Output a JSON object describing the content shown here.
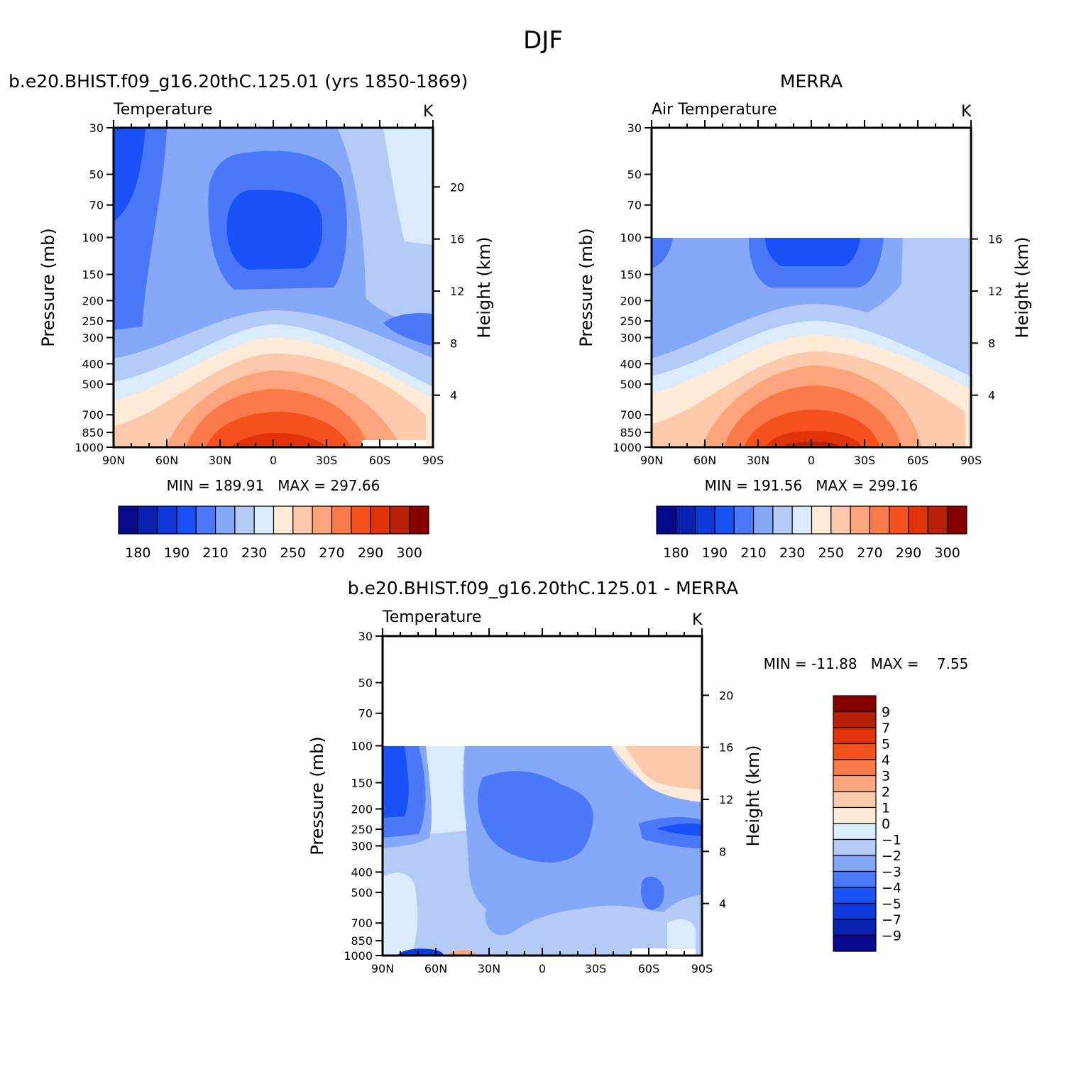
{
  "title": "DJF",
  "colors": {
    "abs_scale": [
      "#08088c",
      "#0a20b0",
      "#0c39d8",
      "#1a52f8",
      "#4a78f8",
      "#86a8f8",
      "#b4cbf8",
      "#daebfc",
      "#fdebd8",
      "#fcc9ad",
      "#fca47c",
      "#fb7a4b",
      "#f5511f",
      "#e0330a",
      "#b92005",
      "#870000"
    ],
    "diff_scale": [
      "#08088c",
      "#0a20b0",
      "#0c39d8",
      "#1a52f8",
      "#4a78f8",
      "#86a8f8",
      "#b4cbf8",
      "#daebfc",
      "#fdebd8",
      "#fcc9ad",
      "#fca47c",
      "#fb7a4b",
      "#f5511f",
      "#e0330a",
      "#b92005",
      "#870000"
    ]
  },
  "panels": {
    "model": {
      "subtitle": "b.e20.BHIST.f09_g16.20thC.125.01 (yrs 1850-1869)",
      "left_label": "Temperature",
      "right_label": "K",
      "stats": "MIN = 189.91   MAX = 297.66",
      "y_title": "Pressure (mb)",
      "y2_title": "Height (km)"
    },
    "obs": {
      "subtitle": "MERRA",
      "left_label": "Air Temperature",
      "right_label": "K",
      "stats": "MIN = 191.56   MAX = 299.16",
      "y_title": "Pressure (mb)",
      "y2_title": "Height (km)"
    },
    "diff": {
      "subtitle": "b.e20.BHIST.f09_g16.20thC.125.01 - MERRA",
      "left_label": "Temperature",
      "right_label": "K",
      "stats": "MIN = -11.88   MAX =    7.55",
      "y_title": "Pressure (mb)",
      "y2_title": "Height (km)"
    }
  },
  "chart_data": [
    {
      "type": "heatmap",
      "panel": "model",
      "title": "b.e20.BHIST.f09_g16.20thC.125.01 (yrs 1850-1869)",
      "x_ticks": [
        "90N",
        "60N",
        "30N",
        "0",
        "30S",
        "60S",
        "90S"
      ],
      "xlim": [
        90,
        -90
      ],
      "y_ticks": [
        30,
        50,
        70,
        100,
        150,
        200,
        250,
        300,
        400,
        500,
        700,
        850,
        1000
      ],
      "ylim": [
        30,
        1000
      ],
      "y_scale": "log",
      "y2_ticks": [
        4,
        8,
        12,
        16,
        20
      ],
      "contour_levels": [
        180,
        190,
        210,
        230,
        250,
        270,
        290,
        300
      ],
      "min": 189.91,
      "max": 297.66,
      "units": "K"
    },
    {
      "type": "heatmap",
      "panel": "obs",
      "title": "MERRA",
      "x_ticks": [
        "90N",
        "60N",
        "30N",
        "0",
        "30S",
        "60S",
        "90S"
      ],
      "xlim": [
        90,
        -90
      ],
      "y_ticks": [
        30,
        50,
        70,
        100,
        150,
        200,
        250,
        300,
        400,
        500,
        700,
        850,
        1000
      ],
      "ylim": [
        30,
        1000
      ],
      "y_scale": "log",
      "y2_ticks": [
        4,
        8,
        12,
        16
      ],
      "contour_levels": [
        180,
        190,
        210,
        230,
        250,
        270,
        290,
        300
      ],
      "min": 191.56,
      "max": 299.16,
      "units": "K"
    },
    {
      "type": "heatmap",
      "panel": "diff",
      "title": "b.e20.BHIST.f09_g16.20thC.125.01 - MERRA",
      "x_ticks": [
        "90N",
        "60N",
        "30N",
        "0",
        "30S",
        "60S",
        "90S"
      ],
      "xlim": [
        90,
        -90
      ],
      "y_ticks": [
        30,
        50,
        70,
        100,
        150,
        200,
        250,
        300,
        400,
        500,
        700,
        850,
        1000
      ],
      "ylim": [
        30,
        1000
      ],
      "y_scale": "log",
      "y2_ticks": [
        4,
        8,
        12,
        16,
        20
      ],
      "contour_levels": [
        -9,
        -7,
        -5,
        -4,
        -3,
        -2,
        -1,
        0,
        1,
        2,
        3,
        4,
        5,
        7,
        9
      ],
      "min": -11.88,
      "max": 7.55,
      "units": "K"
    }
  ],
  "colorbars": {
    "abs_labels": [
      "180",
      "190",
      "210",
      "230",
      "250",
      "270",
      "290",
      "300"
    ],
    "diff_labels": [
      "9",
      "7",
      "5",
      "4",
      "3",
      "2",
      "1",
      "0",
      "−1",
      "−2",
      "−3",
      "−4",
      "−5",
      "−7",
      "−9"
    ]
  }
}
